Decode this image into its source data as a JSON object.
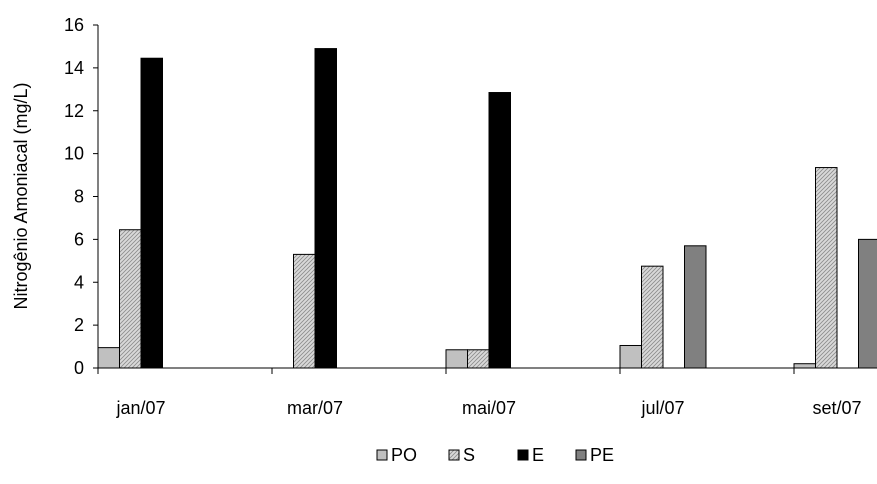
{
  "chart_data": {
    "type": "bar",
    "ylabel": "Nitrogênio Amoniacal (mg/L)",
    "ylim": [
      0,
      16
    ],
    "yticks": [
      0,
      2,
      4,
      6,
      8,
      10,
      12,
      14,
      16
    ],
    "categories": [
      "jan/07",
      "mar/07",
      "mai/07",
      "jul/07",
      "set/07"
    ],
    "series": [
      {
        "name": "PO",
        "values": [
          0.95,
          null,
          0.85,
          1.05,
          0.2
        ],
        "color": "#c0c0c0",
        "pattern": "solid"
      },
      {
        "name": "S",
        "values": [
          6.45,
          5.3,
          0.85,
          4.75,
          9.35
        ],
        "color": "#c0c0c0",
        "pattern": "hatch"
      },
      {
        "name": "E",
        "values": [
          14.45,
          14.9,
          12.85,
          null,
          null
        ],
        "color": "#000000",
        "pattern": "solid"
      },
      {
        "name": "PE",
        "values": [
          null,
          null,
          null,
          5.7,
          6.0
        ],
        "color": "#808080",
        "pattern": "solid"
      }
    ],
    "legend_position": "bottom",
    "grid": false
  }
}
